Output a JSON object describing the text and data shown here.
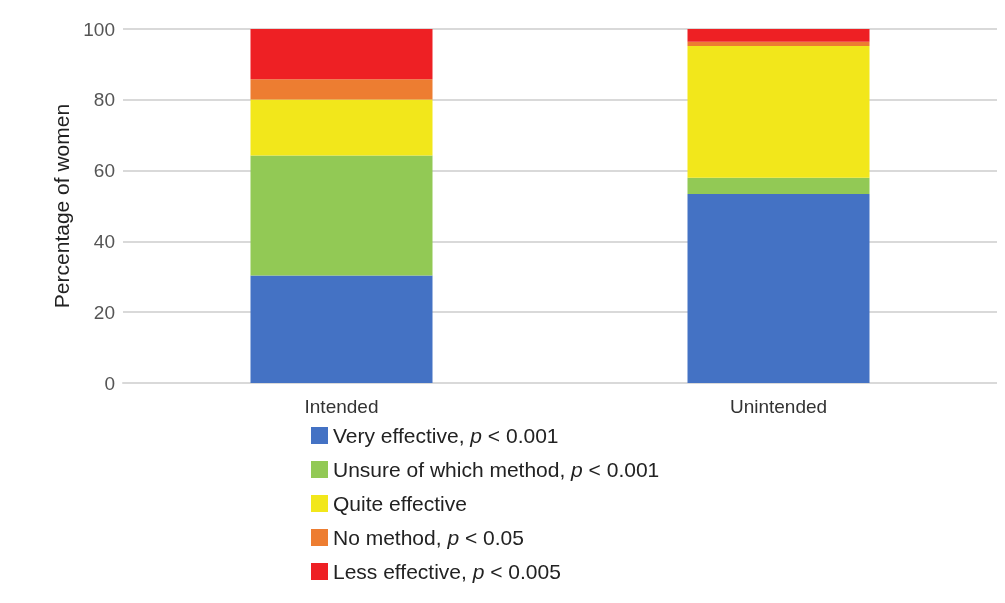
{
  "chart_data": {
    "type": "bar",
    "stacked": true,
    "ylabel": "Percentage of women",
    "categories": [
      "Intended",
      "Unintended"
    ],
    "series": [
      {
        "name": "Very effective, p < 0.001",
        "color": "#4472c4",
        "values": [
          30.4,
          53.4
        ]
      },
      {
        "name": "Unsure of which method, p < 0.001",
        "color": "#92c955",
        "values": [
          33.9,
          4.6
        ]
      },
      {
        "name": "Quite effective",
        "color": "#f2e71b",
        "values": [
          15.8,
          37.2
        ]
      },
      {
        "name": "No method, p < 0.05",
        "color": "#ed7d31",
        "values": [
          5.7,
          1.2
        ]
      },
      {
        "name": "Less effective, p < 0.005",
        "color": "#ee2024",
        "values": [
          14.2,
          3.6
        ]
      }
    ],
    "ylim": [
      0,
      100
    ],
    "yticks": [
      0,
      20,
      40,
      60,
      80,
      100
    ],
    "grid": "y",
    "legend": "bottom"
  }
}
